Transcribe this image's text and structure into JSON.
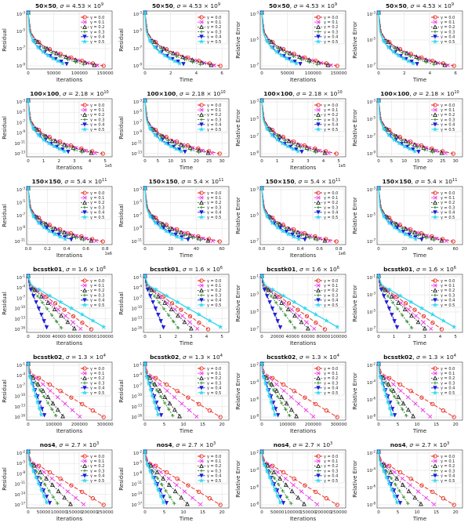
{
  "colors": {
    "y0": "#e8261c",
    "y1": "#ee35e8",
    "y2": "#2a2a2a",
    "y3": "#2e8b2e",
    "y4": "#1e1ed2",
    "y5": "#38d8ee",
    "grid": "#dddddd",
    "axis": "#333333"
  },
  "legend_labels": [
    "γ = 0.0",
    "γ = 0.1",
    "γ = 0.2",
    "γ = 0.3",
    "γ = 0.4",
    "γ = 0.5"
  ],
  "rows": [
    {
      "prefix": "50×50",
      "sigma": "4.53 × 10",
      "sigma_exp": "9",
      "iter_ticks": [
        "0",
        "50000",
        "100000",
        "150000"
      ],
      "iter_mult": "",
      "time_ticks": [
        "0",
        "2",
        "4",
        "6"
      ],
      "res_ticks": [
        {
          "b": "10",
          "e": "-3"
        },
        {
          "b": "10",
          "e": "-5"
        },
        {
          "b": "10",
          "e": "-7"
        },
        {
          "b": "10",
          "e": "-9"
        }
      ],
      "rel_ticks": [
        {
          "b": "10",
          "e": "-3"
        },
        {
          "b": "10",
          "e": "-5"
        },
        {
          "b": "10",
          "e": "-7"
        }
      ],
      "shape": "power",
      "ends": [
        0.98,
        0.9,
        0.86,
        0.72,
        0.5,
        0.45
      ]
    },
    {
      "prefix": "100×100",
      "sigma": "2.18 × 10",
      "sigma_exp": "10",
      "iter_ticks": [
        "0",
        "1",
        "2",
        "3",
        "4",
        "5"
      ],
      "iter_mult": "1e5",
      "time_ticks": [
        "0",
        "5",
        "10",
        "15",
        "20",
        "25",
        "30"
      ],
      "res_ticks": [
        {
          "b": "10",
          "e": "-3"
        },
        {
          "b": "10",
          "e": "-5"
        },
        {
          "b": "10",
          "e": "-7"
        },
        {
          "b": "10",
          "e": "-9"
        },
        {
          "b": "10",
          "e": "-11"
        },
        {
          "b": "10",
          "e": "-13"
        }
      ],
      "rel_ticks": [
        {
          "b": "10",
          "e": "-3"
        },
        {
          "b": "10",
          "e": "-5"
        },
        {
          "b": "10",
          "e": "-7"
        },
        {
          "b": "10",
          "e": "-9"
        }
      ],
      "shape": "power",
      "ends": [
        0.97,
        0.87,
        0.82,
        0.7,
        0.52,
        0.47
      ]
    },
    {
      "prefix": "150×150",
      "sigma": "5.4 × 10",
      "sigma_exp": "11",
      "iter_ticks": [
        "0.0",
        "0.2",
        "0.4",
        "0.6",
        "0.8"
      ],
      "iter_mult": "1e6",
      "time_ticks": [
        "0",
        "20",
        "40",
        "60"
      ],
      "res_ticks": [
        {
          "b": "10",
          "e": "-3"
        },
        {
          "b": "10",
          "e": "-5"
        },
        {
          "b": "10",
          "e": "-7"
        },
        {
          "b": "10",
          "e": "-9"
        },
        {
          "b": "10",
          "e": "-11"
        }
      ],
      "rel_ticks": [
        {
          "b": "10",
          "e": "-3"
        },
        {
          "b": "10",
          "e": "-5"
        },
        {
          "b": "10",
          "e": "-7"
        }
      ],
      "shape": "power",
      "ends": [
        0.97,
        0.88,
        0.82,
        0.72,
        0.56,
        0.48
      ]
    },
    {
      "prefix": "bcsstk01",
      "sigma": "1.6 × 10",
      "sigma_exp": "6",
      "iter_ticks": [
        "0",
        "20000",
        "40000",
        "60000",
        "80000",
        "100000"
      ],
      "iter_mult": "",
      "time_ticks": [
        "0",
        "1",
        "2",
        "3",
        "4",
        "5"
      ],
      "res_ticks": [
        {
          "b": "10",
          "e": "-1"
        },
        {
          "b": "10",
          "e": "-4"
        },
        {
          "b": "10",
          "e": "-7"
        },
        {
          "b": "10",
          "e": "-10"
        },
        {
          "b": "10",
          "e": "-13"
        },
        {
          "b": "10",
          "e": "-16"
        }
      ],
      "rel_ticks": [
        {
          "b": "10",
          "e": "-1"
        },
        {
          "b": "10",
          "e": "-3"
        },
        {
          "b": "10",
          "e": "-5"
        },
        {
          "b": "10",
          "e": "-7"
        }
      ],
      "shape": "linear",
      "ends": [
        0.82,
        0.68,
        0.6,
        0.43,
        0.24,
        0.98
      ]
    },
    {
      "prefix": "bcsstk02",
      "sigma": "1.3 × 10",
      "sigma_exp": "4",
      "iter_ticks": [
        "0",
        "100000",
        "200000",
        "300000"
      ],
      "iter_mult": "",
      "time_ticks": [
        "0",
        "5",
        "10",
        "15",
        "20"
      ],
      "res_ticks": [
        {
          "b": "10",
          "e": "-1"
        },
        {
          "b": "10",
          "e": "-4"
        },
        {
          "b": "10",
          "e": "-7"
        },
        {
          "b": "10",
          "e": "-10"
        },
        {
          "b": "10",
          "e": "-13"
        },
        {
          "b": "10",
          "e": "-16"
        }
      ],
      "rel_ticks": [
        {
          "b": "10",
          "e": "-2"
        },
        {
          "b": "10",
          "e": "-4"
        },
        {
          "b": "10",
          "e": "-6"
        },
        {
          "b": "10",
          "e": "-8"
        }
      ],
      "shape": "linear",
      "ends": [
        0.98,
        0.67,
        0.45,
        0.36,
        0.21,
        0.17
      ]
    },
    {
      "prefix": "nos4",
      "sigma": "2.7 × 10",
      "sigma_exp": "3",
      "iter_ticks": [
        "0",
        "50000",
        "100000",
        "150000",
        "200000",
        "250000"
      ],
      "iter_mult": "",
      "time_ticks": [
        "0",
        "5",
        "10",
        "15",
        "20"
      ],
      "res_ticks": [
        {
          "b": "10",
          "e": "-2"
        },
        {
          "b": "10",
          "e": "-5"
        },
        {
          "b": "10",
          "e": "-8"
        },
        {
          "b": "10",
          "e": "-11"
        },
        {
          "b": "10",
          "e": "-14"
        },
        {
          "b": "10",
          "e": "-17"
        }
      ],
      "rel_ticks": [
        {
          "b": "10",
          "e": "-2"
        },
        {
          "b": "10",
          "e": "-4"
        },
        {
          "b": "10",
          "e": "-6"
        },
        {
          "b": "10",
          "e": "-8"
        }
      ],
      "shape": "linear",
      "ends": [
        0.98,
        0.72,
        0.55,
        0.38,
        0.28,
        0.24
      ]
    }
  ],
  "columns": [
    {
      "x": "Iterations",
      "y": "Residual",
      "kind": "iter",
      "yt": "res"
    },
    {
      "x": "Time",
      "y": "Residual",
      "kind": "time",
      "yt": "res"
    },
    {
      "x": "Iterations",
      "y": "Relative Error",
      "kind": "iter",
      "yt": "rel"
    },
    {
      "x": "Time",
      "y": "Relative Error",
      "kind": "time",
      "yt": "rel"
    }
  ],
  "chart_data": {
    "type": "line",
    "panels": 24,
    "series_names": [
      "γ = 0.0",
      "γ = 0.1",
      "γ = 0.2",
      "γ = 0.3",
      "γ = 0.4",
      "γ = 0.5"
    ],
    "y_scale": "log",
    "grid": true,
    "legend_placement": "top-right"
  }
}
